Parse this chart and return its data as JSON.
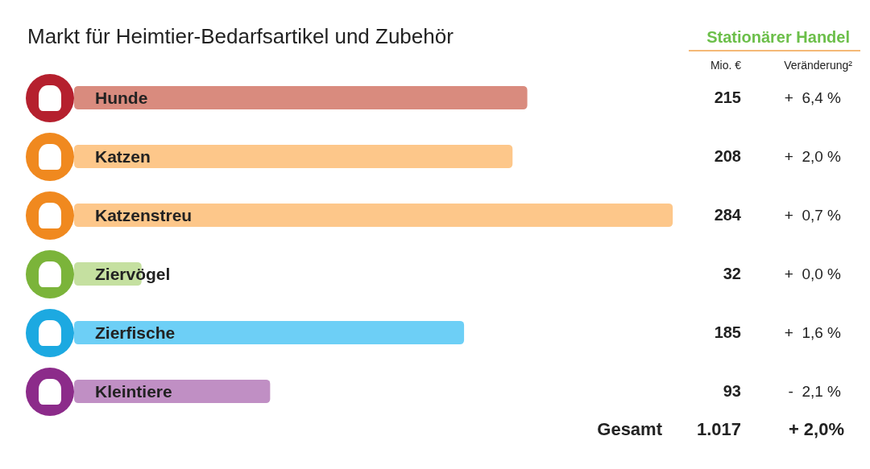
{
  "chart_data": {
    "type": "bar",
    "orientation": "horizontal",
    "title": "Markt für Heimtier-Bedarfsartikel und Zubehör",
    "categories": [
      "Hunde",
      "Katzen",
      "Katzenstreu",
      "Ziervögel",
      "Zierfische",
      "Kleintiere"
    ],
    "values": [
      215,
      208,
      284,
      32,
      185,
      93
    ],
    "colors": [
      "#d98b7e",
      "#fdc78a",
      "#fdc78a",
      "#c5e0a0",
      "#6dcff6",
      "#c08fc4"
    ],
    "data_labels": true,
    "annotations": [
      "Stationärer Handel",
      "Mio. €",
      "Veränderung²",
      "+  6,4 %",
      "+  2,0 %",
      "+  0,7 %",
      "+  0,0 %",
      "+  1,6 %",
      "-  2,1 %",
      "Gesamt",
      "1.017",
      "+ 2,0%"
    ]
  }
}
